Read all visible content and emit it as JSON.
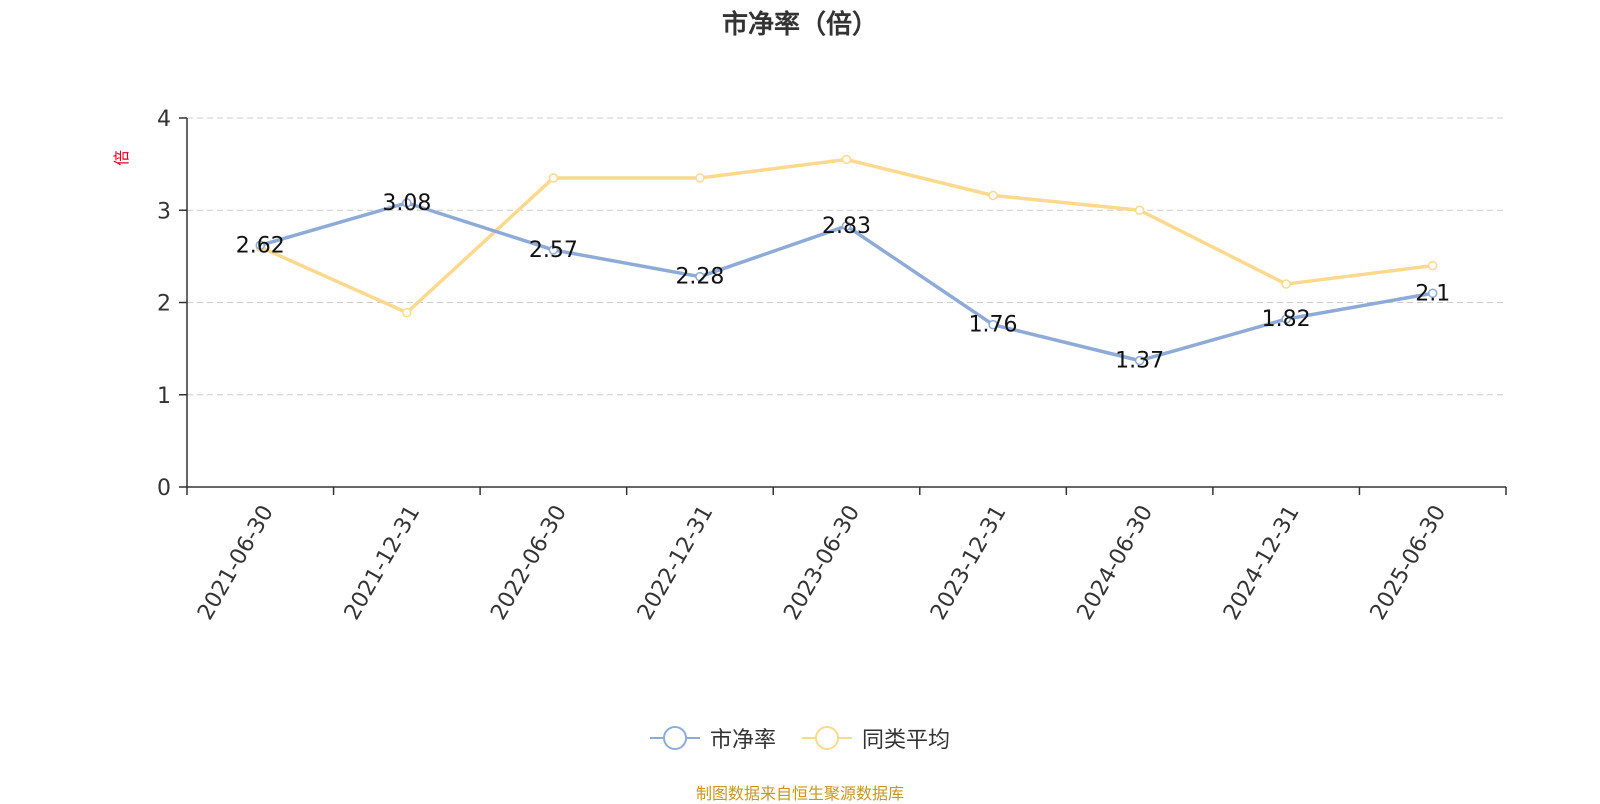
{
  "title": "市净率（倍）",
  "y_unit": "倍",
  "source": "制图数据来自恒生聚源数据库",
  "colors": {
    "pb": "#8eabd8",
    "avg": "#fcd98e",
    "unit": "#e0001b",
    "source": "#c8961e"
  },
  "chart_data": {
    "type": "line",
    "title": "市净率（倍）",
    "ylabel": "倍",
    "ylim": [
      0,
      4
    ],
    "yticks": [
      0,
      1,
      2,
      3,
      4
    ],
    "grid": true,
    "legend_position": "bottom-center",
    "categories": [
      "2021-06-30",
      "2021-12-31",
      "2022-06-30",
      "2022-12-31",
      "2023-06-30",
      "2023-12-31",
      "2024-06-30",
      "2024-12-31",
      "2025-06-30"
    ],
    "series": [
      {
        "name": "市净率",
        "values": [
          2.62,
          3.08,
          2.57,
          2.28,
          2.83,
          1.76,
          1.37,
          1.82,
          2.1
        ],
        "labels": [
          "2.62",
          "3.08",
          "2.57",
          "2.28",
          "2.83",
          "1.76",
          "1.37",
          "1.82",
          "2.1"
        ],
        "show_labels": true
      },
      {
        "name": "同类平均",
        "values": [
          2.6,
          1.89,
          3.35,
          3.35,
          3.55,
          3.16,
          3.0,
          2.2,
          2.4
        ],
        "show_labels": false
      }
    ]
  }
}
